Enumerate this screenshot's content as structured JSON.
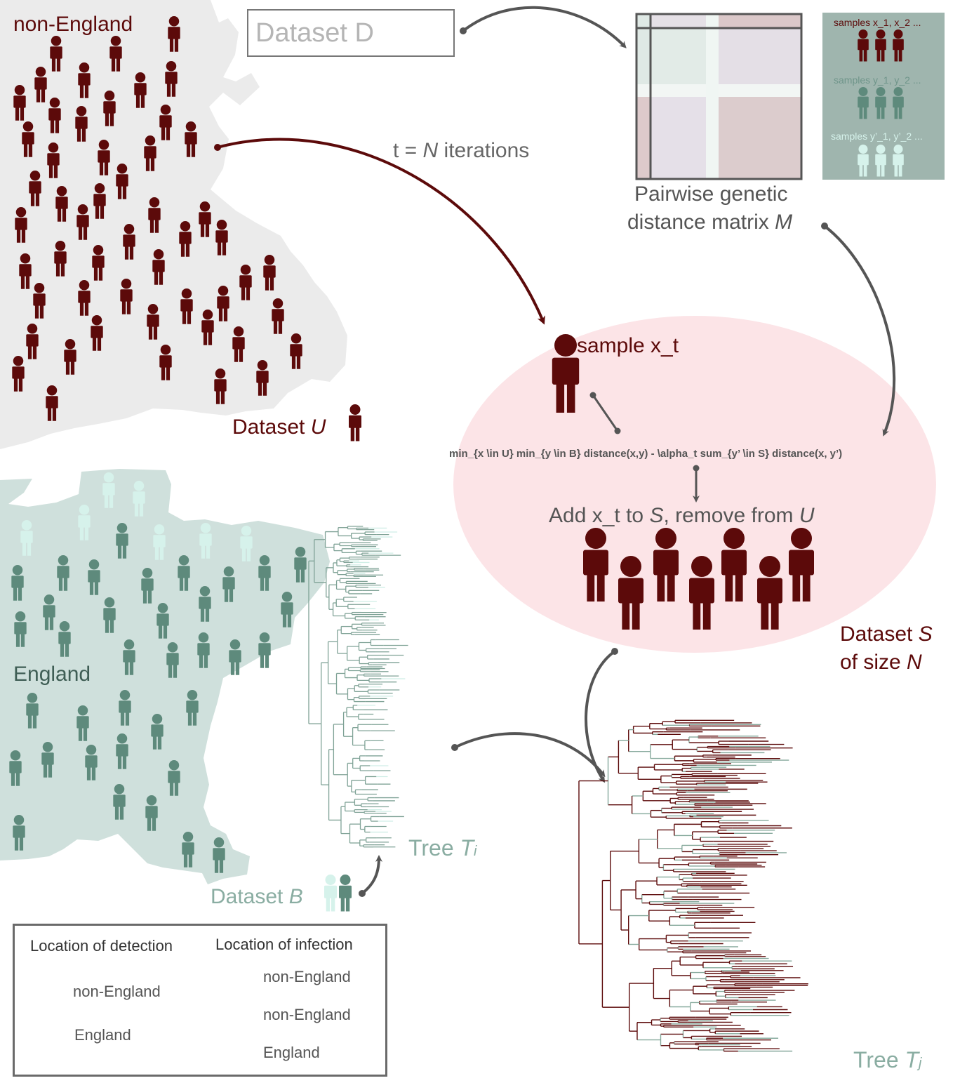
{
  "colors": {
    "dark_red": "#5c0a0a",
    "mint": "#d6f2eb",
    "teal": "#5e8a7c",
    "england_region": "#cfe0dc",
    "nonengland_region": "#ebebeb",
    "ellipse": "#fce4e7",
    "arrow": "#555555"
  },
  "regions": {
    "non_england_label": "non-England",
    "england_label": "England"
  },
  "dataset_d": {
    "label": "Dataset D"
  },
  "iterations": {
    "prefix": "t = ",
    "var": "N",
    "suffix": " iterations"
  },
  "matrix": {
    "caption_line1": "Pairwise genetic",
    "caption_line2": "distance matrix ",
    "caption_var": "M"
  },
  "samples_panel": {
    "x_label": "samples x_1, x_2 ...",
    "y_label": "samples y_1, y_2 ...",
    "yprime_label": "samples y’_1, y’_2 ..."
  },
  "dataset_u": {
    "label": "Dataset ",
    "var": "U"
  },
  "ellipse": {
    "sample_label": "sample x_t",
    "formula": "min_{x \\in U} min_{y \\in B} distance(x,y) - \\alpha_t sum_{y’ \\in S} distance(x, y’)",
    "add_prefix": "Add x_t to ",
    "add_var1": "S",
    "add_middle": ", remove from ",
    "add_var2": "U"
  },
  "dataset_s": {
    "line1": "Dataset ",
    "var1": "S",
    "line2": "of size ",
    "var2": "N"
  },
  "tree_i": {
    "label": "Tree ",
    "var": "T",
    "sub": "i"
  },
  "tree_j": {
    "label": "Tree ",
    "var": "T",
    "sub": "j"
  },
  "dataset_b": {
    "label": "Dataset ",
    "var": "B"
  },
  "legend": {
    "detection_title": "Location of detection",
    "infection_title": "Location of infection",
    "detection_items": [
      "non-England",
      "England"
    ],
    "infection_items": [
      "non-England",
      "non-England",
      "England"
    ]
  }
}
